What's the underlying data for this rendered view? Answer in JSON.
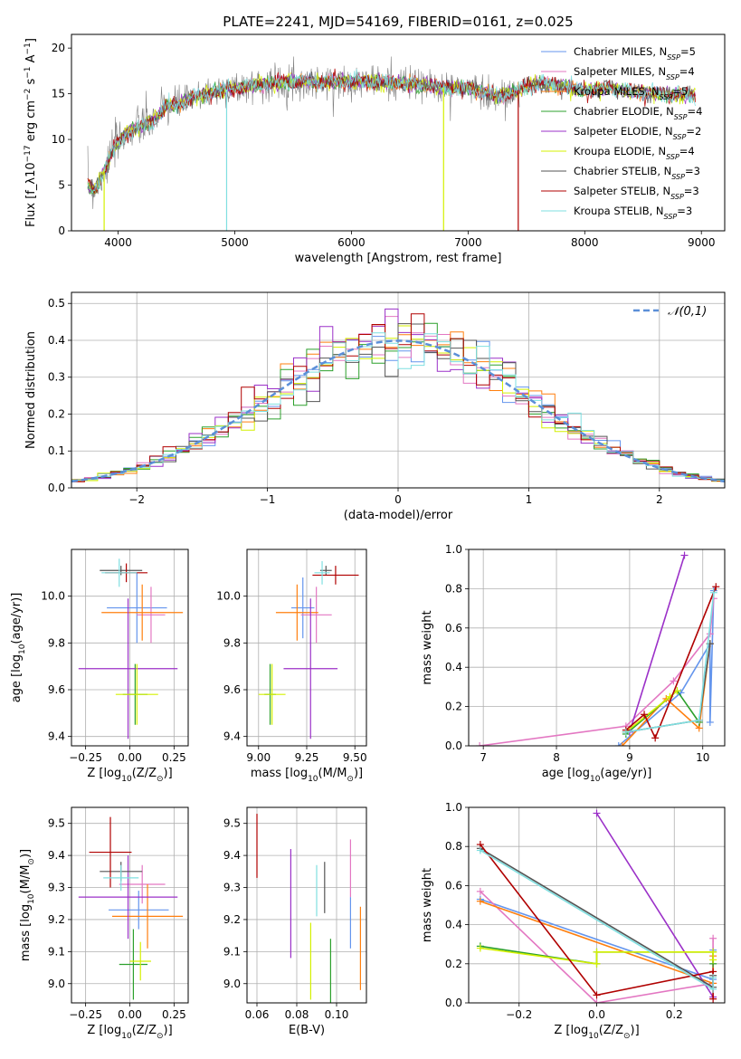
{
  "figure": {
    "title": "PLATE=2241, MJD=54169, FIBERID=0161, z=0.025"
  },
  "colors": {
    "Chabrier MILES": "#6495ed",
    "Salpeter MILES": "#e377c2",
    "Kroupa MILES": "#ff7f0e",
    "Chabrier ELODIE": "#2ca02c",
    "Salpeter ELODIE": "#9b30c8",
    "Kroupa ELODIE": "#d4f000",
    "Chabrier STELIB": "#555555",
    "Salpeter STELIB": "#b00000",
    "Kroupa STELIB": "#7fdfe0",
    "data": "#808080",
    "normal": "#5b8fd8"
  },
  "chart_data": [
    {
      "id": "spectrum",
      "type": "line",
      "title": "PLATE=2241, MJD=54169, FIBERID=0161, z=0.025",
      "xlabel": "wavelength [Angstrom, rest frame]",
      "ylabel": "Flux [f_λ10^-17 erg cm^-2 s^-1 A^-1]",
      "xlim": [
        3600,
        9200
      ],
      "ylim": [
        0,
        21.5
      ],
      "xticks": [
        4000,
        5000,
        6000,
        7000,
        8000,
        9000
      ],
      "yticks": [
        0,
        5,
        10,
        15,
        20
      ],
      "grid": false,
      "legend_position": "upper right",
      "legend": [
        {
          "name": "Chabrier MILES",
          "base": "Chabrier MILES, N",
          "sub": "SSP",
          "tail": "=5"
        },
        {
          "name": "Salpeter MILES",
          "base": "Salpeter MILES, N",
          "sub": "SSP",
          "tail": "=4"
        },
        {
          "name": "Kroupa MILES",
          "base": "Kroupa MILES, N",
          "sub": "SSP",
          "tail": "=5"
        },
        {
          "name": "Chabrier ELODIE",
          "base": "Chabrier ELODIE, N",
          "sub": "SSP",
          "tail": "=4"
        },
        {
          "name": "Salpeter ELODIE",
          "base": "Salpeter ELODIE, N",
          "sub": "SSP",
          "tail": "=2"
        },
        {
          "name": "Kroupa ELODIE",
          "base": "Kroupa ELODIE, N",
          "sub": "SSP",
          "tail": "=4"
        },
        {
          "name": "Chabrier STELIB",
          "base": "Chabrier STELIB, N",
          "sub": "SSP",
          "tail": "=3"
        },
        {
          "name": "Salpeter STELIB",
          "base": "Salpeter STELIB, N",
          "sub": "SSP",
          "tail": "=3"
        },
        {
          "name": "Kroupa STELIB",
          "base": "Kroupa STELIB, N",
          "sub": "SSP",
          "tail": "=3"
        }
      ],
      "continuum": [
        [
          3740,
          5.0
        ],
        [
          3800,
          4.5
        ],
        [
          3900,
          7.0
        ],
        [
          3960,
          9.0
        ],
        [
          4050,
          10.5
        ],
        [
          4150,
          11.2
        ],
        [
          4300,
          12.0
        ],
        [
          4400,
          13.5
        ],
        [
          4550,
          14.0
        ],
        [
          4700,
          14.8
        ],
        [
          4850,
          15.3
        ],
        [
          5000,
          15.6
        ],
        [
          5200,
          16.0
        ],
        [
          5400,
          16.3
        ],
        [
          5600,
          16.3
        ],
        [
          5800,
          16.3
        ],
        [
          6000,
          16.4
        ],
        [
          6200,
          16.3
        ],
        [
          6400,
          16.2
        ],
        [
          6600,
          16.0
        ],
        [
          6800,
          15.7
        ],
        [
          7000,
          15.6
        ],
        [
          7150,
          15.2
        ],
        [
          7250,
          14.6
        ],
        [
          7350,
          15.0
        ],
        [
          7450,
          15.5
        ],
        [
          7600,
          16.2
        ],
        [
          7800,
          15.8
        ],
        [
          8000,
          15.4
        ],
        [
          8200,
          15.6
        ],
        [
          8400,
          15.2
        ],
        [
          8600,
          15.0
        ],
        [
          8800,
          14.9
        ],
        [
          8950,
          14.8
        ]
      ],
      "model_xrange": [
        3740,
        8950
      ],
      "data_xrange": [
        3740,
        7440
      ],
      "dips": [
        {
          "x": 4930,
          "to": 0,
          "model": "Kroupa STELIB"
        },
        {
          "x": 6790,
          "to": 0,
          "model": "Kroupa ELODIE"
        },
        {
          "x": 7430,
          "to": 0,
          "model": "Salpeter STELIB"
        },
        {
          "x": 3880,
          "to": 0,
          "model": "Kroupa ELODIE"
        }
      ]
    },
    {
      "id": "residuals",
      "type": "line",
      "xlabel": "(data-model)/error",
      "ylabel": "Normed distribution",
      "xlim": [
        -2.5,
        2.5
      ],
      "ylim": [
        0,
        0.53
      ],
      "xticks": [
        -2,
        -1,
        0,
        1,
        2
      ],
      "yticks": [
        0.0,
        0.1,
        0.2,
        0.3,
        0.4,
        0.5
      ],
      "grid": true,
      "legend_position": "upper right",
      "legend": [
        "𝒩(0,1)"
      ],
      "bin_width": 0.1,
      "histogram_series": [
        "Chabrier MILES",
        "Salpeter MILES",
        "Kroupa MILES",
        "Chabrier ELODIE",
        "Salpeter ELODIE",
        "Kroupa ELODIE",
        "Chabrier STELIB",
        "Salpeter STELIB",
        "Kroupa STELIB"
      ],
      "curve": {
        "name": "𝒩(0,1)",
        "mu": 0,
        "sigma": 1,
        "style": "dashed"
      }
    },
    {
      "id": "age_vs_Z",
      "type": "scatter",
      "xlabel": "Z [log10(Z/Z⊙)]",
      "ylabel": "age [log10(age/yr)]",
      "xlim": [
        -0.33,
        0.33
      ],
      "ylim": [
        9.36,
        10.2
      ],
      "xticks": [
        -0.25,
        0.0,
        0.25
      ],
      "xticklabels": [
        "−0.25",
        "0.00",
        "0.25"
      ],
      "yticks": [
        9.4,
        9.6,
        9.8,
        10.0
      ],
      "grid": true,
      "points": [
        {
          "model": "Chabrier MILES",
          "x": 0.04,
          "xerr": 0.17,
          "y": 9.95,
          "yerr": 0.15
        },
        {
          "model": "Salpeter MILES",
          "x": 0.12,
          "xerr": 0.08,
          "y": 9.92,
          "yerr": 0.12
        },
        {
          "model": "Kroupa MILES",
          "x": 0.07,
          "xerr": 0.23,
          "y": 9.93,
          "yerr": 0.12
        },
        {
          "model": "Chabrier ELODIE",
          "x": 0.03,
          "xerr": 0.07,
          "y": 9.58,
          "yerr": 0.13
        },
        {
          "model": "Salpeter ELODIE",
          "x": -0.01,
          "xerr": 0.28,
          "y": 9.69,
          "yerr": 0.3
        },
        {
          "model": "Kroupa ELODIE",
          "x": 0.04,
          "xerr": 0.12,
          "y": 9.58,
          "yerr": 0.13
        },
        {
          "model": "Chabrier STELIB",
          "x": -0.05,
          "xerr": 0.12,
          "y": 10.11,
          "yerr": 0.02
        },
        {
          "model": "Salpeter STELIB",
          "x": -0.02,
          "xerr": 0.12,
          "y": 10.1,
          "yerr": 0.04
        },
        {
          "model": "Kroupa STELIB",
          "x": -0.06,
          "xerr": 0.1,
          "y": 10.1,
          "yerr": 0.06
        }
      ]
    },
    {
      "id": "age_vs_mass",
      "type": "scatter",
      "xlabel": "mass [log10(M/M⊙)]",
      "ylabel": "",
      "xlim": [
        8.94,
        9.56
      ],
      "ylim": [
        9.36,
        10.2
      ],
      "xticks": [
        9.0,
        9.25,
        9.5
      ],
      "xticklabels": [
        "9.00",
        "9.25",
        "9.50"
      ],
      "yticks": [
        9.4,
        9.6,
        9.8,
        10.0
      ],
      "grid": true,
      "points": [
        {
          "model": "Chabrier MILES",
          "x": 9.23,
          "xerr": 0.06,
          "y": 9.95,
          "yerr": 0.13
        },
        {
          "model": "Salpeter MILES",
          "x": 9.3,
          "xerr": 0.08,
          "y": 9.92,
          "yerr": 0.12
        },
        {
          "model": "Kroupa MILES",
          "x": 9.2,
          "xerr": 0.11,
          "y": 9.93,
          "yerr": 0.12
        },
        {
          "model": "Chabrier ELODIE",
          "x": 9.06,
          "xerr": 0.03,
          "y": 9.58,
          "yerr": 0.13
        },
        {
          "model": "Salpeter ELODIE",
          "x": 9.27,
          "xerr": 0.14,
          "y": 9.69,
          "yerr": 0.3
        },
        {
          "model": "Kroupa ELODIE",
          "x": 9.07,
          "xerr": 0.07,
          "y": 9.58,
          "yerr": 0.13
        },
        {
          "model": "Chabrier STELIB",
          "x": 9.35,
          "xerr": 0.03,
          "y": 10.11,
          "yerr": 0.02
        },
        {
          "model": "Salpeter STELIB",
          "x": 9.4,
          "xerr": 0.12,
          "y": 10.09,
          "yerr": 0.04
        },
        {
          "model": "Kroupa STELIB",
          "x": 9.33,
          "xerr": 0.04,
          "y": 10.1,
          "yerr": 0.05
        }
      ]
    },
    {
      "id": "weight_vs_age",
      "type": "line",
      "xlabel": "age [log10(age/yr)]",
      "ylabel": "mass weight",
      "xlim": [
        6.8,
        10.3
      ],
      "ylim": [
        0,
        1
      ],
      "xticks": [
        7,
        8,
        9,
        10
      ],
      "yticks": [
        0.0,
        0.2,
        0.4,
        0.6,
        0.8,
        1.0
      ],
      "grid": true,
      "series": [
        {
          "model": "Chabrier MILES",
          "x": [
            8.85,
            9.7,
            10.1,
            10.1,
            10.15
          ],
          "y": [
            0.0,
            0.27,
            0.52,
            0.12,
            0.79
          ]
        },
        {
          "model": "Salpeter MILES",
          "x": [
            6.95,
            8.95,
            9.6,
            10.1,
            10.15
          ],
          "y": [
            0.0,
            0.1,
            0.33,
            0.57,
            0.75
          ]
        },
        {
          "model": "Kroupa MILES",
          "x": [
            8.9,
            9.5,
            9.95,
            10.1
          ],
          "y": [
            0.0,
            0.24,
            0.09,
            0.52
          ]
        },
        {
          "model": "Chabrier ELODIE",
          "x": [
            8.95,
            9.65,
            9.95
          ],
          "y": [
            0.06,
            0.28,
            0.12
          ]
        },
        {
          "model": "Salpeter ELODIE",
          "x": [
            9.0,
            9.75
          ],
          "y": [
            0.07,
            0.97
          ]
        },
        {
          "model": "Kroupa ELODIE",
          "x": [
            8.95,
            9.55,
            9.65
          ],
          "y": [
            0.07,
            0.25,
            0.28
          ]
        },
        {
          "model": "Chabrier STELIB",
          "x": [
            8.95,
            9.95,
            10.1
          ],
          "y": [
            0.07,
            0.13,
            0.52
          ]
        },
        {
          "model": "Salpeter STELIB",
          "x": [
            8.95,
            9.2,
            9.35,
            10.18
          ],
          "y": [
            0.08,
            0.16,
            0.04,
            0.81
          ]
        },
        {
          "model": "Kroupa STELIB",
          "x": [
            8.95,
            9.95,
            10.15
          ],
          "y": [
            0.07,
            0.13,
            0.78
          ]
        }
      ]
    },
    {
      "id": "mass_vs_Z",
      "type": "scatter",
      "xlabel": "Z [log10(Z/Z⊙)]",
      "ylabel": "mass [log10(M/M⊙)]",
      "xlim": [
        -0.33,
        0.33
      ],
      "ylim": [
        8.94,
        9.55
      ],
      "xticks": [
        -0.25,
        0.0,
        0.25
      ],
      "xticklabels": [
        "−0.25",
        "0.00",
        "0.25"
      ],
      "yticks": [
        9.0,
        9.1,
        9.2,
        9.3,
        9.4,
        9.5
      ],
      "grid": true,
      "points": [
        {
          "model": "Chabrier MILES",
          "x": 0.05,
          "xerr": 0.17,
          "y": 9.23,
          "yerr": 0.06
        },
        {
          "model": "Salpeter MILES",
          "x": 0.07,
          "xerr": 0.13,
          "y": 9.31,
          "yerr": 0.06
        },
        {
          "model": "Kroupa MILES",
          "x": 0.1,
          "xerr": 0.2,
          "y": 9.21,
          "yerr": 0.1
        },
        {
          "model": "Chabrier ELODIE",
          "x": 0.02,
          "xerr": 0.08,
          "y": 9.06,
          "yerr": 0.11
        },
        {
          "model": "Salpeter ELODIE",
          "x": -0.01,
          "xerr": 0.28,
          "y": 9.27,
          "yerr": 0.13
        },
        {
          "model": "Kroupa ELODIE",
          "x": 0.06,
          "xerr": 0.06,
          "y": 9.07,
          "yerr": 0.06
        },
        {
          "model": "Chabrier STELIB",
          "x": -0.05,
          "xerr": 0.12,
          "y": 9.35,
          "yerr": 0.03
        },
        {
          "model": "Salpeter STELIB",
          "x": -0.11,
          "xerr": 0.12,
          "y": 9.41,
          "yerr": 0.11
        },
        {
          "model": "Kroupa STELIB",
          "x": -0.05,
          "xerr": 0.1,
          "y": 9.33,
          "yerr": 0.04
        }
      ]
    },
    {
      "id": "mass_vs_ebv",
      "type": "scatter",
      "xlabel": "E(B-V)",
      "ylabel": "",
      "xlim": [
        0.055,
        0.115
      ],
      "ylim": [
        8.94,
        9.55
      ],
      "xticks": [
        0.06,
        0.08,
        0.1
      ],
      "xticklabels": [
        "0.06",
        "0.08",
        "0.10"
      ],
      "yticks": [
        9.0,
        9.1,
        9.2,
        9.3,
        9.4,
        9.5
      ],
      "grid": true,
      "points": [
        {
          "model": "Salpeter STELIB",
          "x": 0.06,
          "xerr": 0,
          "y": 9.43,
          "yerr": 0.1
        },
        {
          "model": "Salpeter ELODIE",
          "x": 0.077,
          "xerr": 0,
          "y": 9.25,
          "yerr": 0.17
        },
        {
          "model": "Kroupa ELODIE",
          "x": 0.087,
          "xerr": 0,
          "y": 9.07,
          "yerr": 0.12
        },
        {
          "model": "Kroupa STELIB",
          "x": 0.09,
          "xerr": 0,
          "y": 9.29,
          "yerr": 0.08
        },
        {
          "model": "Chabrier STELIB",
          "x": 0.094,
          "xerr": 0,
          "y": 9.3,
          "yerr": 0.08
        },
        {
          "model": "Chabrier ELODIE",
          "x": 0.097,
          "xerr": 0,
          "y": 9.04,
          "yerr": 0.1
        },
        {
          "model": "Salpeter MILES",
          "x": 0.107,
          "xerr": 0,
          "y": 9.36,
          "yerr": 0.09
        },
        {
          "model": "Chabrier MILES",
          "x": 0.107,
          "xerr": 0,
          "y": 9.19,
          "yerr": 0.08
        },
        {
          "model": "Kroupa MILES",
          "x": 0.112,
          "xerr": 0,
          "y": 9.11,
          "yerr": 0.13
        }
      ]
    },
    {
      "id": "weight_vs_Z",
      "type": "line",
      "xlabel": "Z [log10(Z/Z⊙)]",
      "ylabel": "mass weight",
      "xlim": [
        -0.33,
        0.33
      ],
      "ylim": [
        0,
        1
      ],
      "xticks": [
        -0.2,
        0.0,
        0.2
      ],
      "xticklabels": [
        "−0.2",
        "0.0",
        "0.2"
      ],
      "yticks": [
        0.0,
        0.2,
        0.4,
        0.6,
        0.8,
        1.0
      ],
      "grid": true,
      "series": [
        {
          "model": "Chabrier MILES",
          "x": [
            -0.3,
            0.3,
            0.3
          ],
          "y": [
            0.53,
            0.12,
            0.27
          ]
        },
        {
          "model": "Salpeter MILES",
          "x": [
            -0.3,
            0.0,
            0.3,
            0.3
          ],
          "y": [
            0.57,
            0.0,
            0.1,
            0.33
          ]
        },
        {
          "model": "Kroupa MILES",
          "x": [
            -0.3,
            0.3,
            0.3
          ],
          "y": [
            0.52,
            0.1,
            0.24
          ]
        },
        {
          "model": "Chabrier ELODIE",
          "x": [
            -0.3,
            0.0,
            0.0,
            0.3,
            0.3
          ],
          "y": [
            0.29,
            0.2,
            0.26,
            0.26,
            0.2
          ]
        },
        {
          "model": "Salpeter ELODIE",
          "x": [
            0.0,
            0.3
          ],
          "y": [
            0.97,
            0.03
          ]
        },
        {
          "model": "Kroupa ELODIE",
          "x": [
            -0.3,
            0.0,
            0.0,
            0.3,
            0.3
          ],
          "y": [
            0.28,
            0.2,
            0.26,
            0.26,
            0.22
          ]
        },
        {
          "model": "Chabrier STELIB",
          "x": [
            -0.3,
            0.3,
            0.3
          ],
          "y": [
            0.79,
            0.08,
            0.14
          ]
        },
        {
          "model": "Salpeter STELIB",
          "x": [
            -0.3,
            0.0,
            0.3,
            0.3
          ],
          "y": [
            0.81,
            0.04,
            0.16,
            0.02
          ]
        },
        {
          "model": "Kroupa STELIB",
          "x": [
            -0.3,
            0.3,
            0.3
          ],
          "y": [
            0.78,
            0.07,
            0.13
          ]
        }
      ]
    }
  ]
}
